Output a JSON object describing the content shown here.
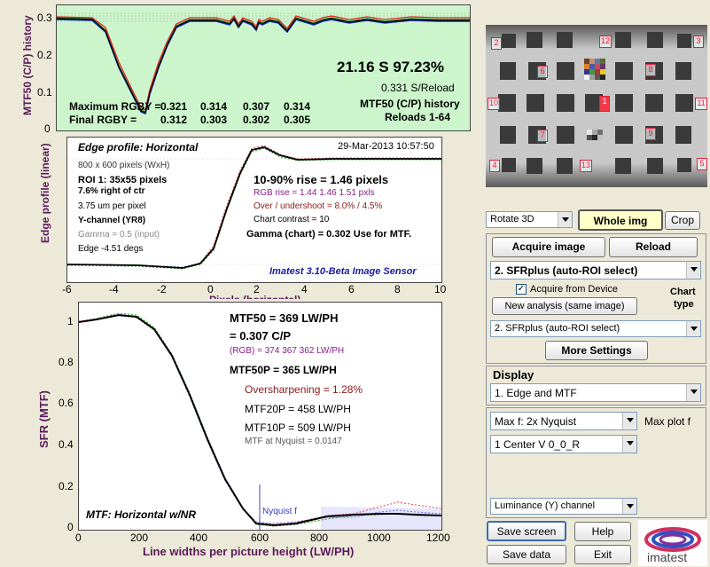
{
  "history": {
    "ylabel": "MTF50 (C/P) history",
    "yticks": [
      "0.3",
      "0.2",
      "0.1",
      "0"
    ],
    "big_value": "21.16 S  97.23%",
    "reload_rate": "0.331 S/Reload",
    "title": "MTF50 (C/P) history",
    "reloads": "Reloads 1-64",
    "max_label": "Maximum RGBY =",
    "max_values": [
      "0.321",
      "0.314",
      "0.307",
      "0.314"
    ],
    "final_label": "Final  RGBY =",
    "final_values": [
      "0.312",
      "0.303",
      "0.302",
      "0.305"
    ]
  },
  "edge": {
    "ylabel": "Edge profile (linear)",
    "title": "Edge profile: Horizontal",
    "date": "29-Mar-2013 10:57:50",
    "size": "800 x 600 pixels (WxH)",
    "roi": "ROI 1:  35x55 pixels",
    "right_of_ctr": "7.6% right of ctr",
    "um": "3.75 um per pixel",
    "channel": "Y-channel  (YR8)",
    "gamma_input": "Gamma = 0.5 (input)",
    "edge_angle": "Edge -4.51 degs",
    "rise": "10-90% rise = 1.46 pixels",
    "rgb_rise": "RGB rise = 1.44  1.46  1.51 pxls",
    "overshoot": "Over / undershoot = 8.0% / 4.5%",
    "contrast": "Chart contrast = 10",
    "gamma_chart": "Gamma (chart) = 0.302  Use for MTF.",
    "brand": "Imatest 3.10-Beta Image Sensor",
    "xlabel": "Pixels (horizontal)",
    "xticks": [
      "-6",
      "-4",
      "-2",
      "0",
      "2",
      "4",
      "6",
      "8",
      "10"
    ]
  },
  "mtf": {
    "ylabel": "SFR (MTF)",
    "yticks": [
      "1",
      "0.8",
      "0.6",
      "0.4",
      "0.2",
      "0"
    ],
    "xticks": [
      "0",
      "200",
      "400",
      "600",
      "800",
      "1000",
      "1200"
    ],
    "xlabel": "Line widths per picture height (LW/PH)",
    "mtf50": "MTF50 = 369 LW/PH",
    "mtf50_cp": "= 0.307 C/P",
    "rgb": "(RGB) = 374  367  362 LW/PH",
    "mtf50p": "MTF50P = 365 LW/PH",
    "oversharp": "Oversharpening = 1.28%",
    "mtf20p": "MTF20P = 458 LW/PH",
    "mtf10p": "MTF10P = 509 LW/PH",
    "nyq_val": "MTF at Nyquist = 0.0147",
    "nyquist": "Nyquist f",
    "label": "MTF: Horizontal w/NR"
  },
  "image_panel": {
    "roi_labels": [
      "2",
      "12",
      "3",
      "6",
      "8",
      "10",
      "1",
      "11",
      "7",
      "9",
      "4",
      "13",
      "5"
    ]
  },
  "controls": {
    "rotate": "Rotate 3D",
    "whole_img": "Whole img",
    "crop": "Crop",
    "acquire": "Acquire image",
    "reload": "Reload",
    "sfr_select": "2. SFRplus (auto-ROI select)",
    "acquire_device": "Acquire from Device",
    "chart": "Chart",
    "type": "type",
    "new_analysis": "New analysis (same image)",
    "sfr_select2": "2. SFRplus (auto-ROI select)",
    "more_settings": "More Settings",
    "display_title": "Display",
    "display_select": "1.  Edge and MTF",
    "maxf": "Max f:    2x Nyquist",
    "max_plot": "Max plot f",
    "center": "1  Center  V     0_0_R",
    "luminance": "Luminance (Y) channel",
    "save_screen": "Save screen",
    "help": "Help",
    "save_data": "Save data",
    "exit": "Exit",
    "logo_text": "imatest"
  },
  "colors": {
    "history_bg": "#ccf5cc",
    "plot_bg": "#ffffff",
    "axis_label": "#5a1a5a",
    "brand": "#1a1aa0",
    "rgb_text": "#8b1a8b",
    "oversharp_text": "#8b1a1a",
    "whole_img_bg": "#ffffc8"
  }
}
